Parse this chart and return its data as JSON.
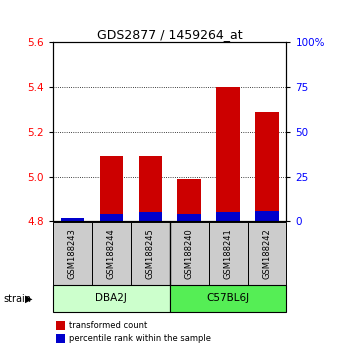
{
  "title": "GDS2877 / 1459264_at",
  "samples": [
    "GSM188243",
    "GSM188244",
    "GSM188245",
    "GSM188240",
    "GSM188241",
    "GSM188242"
  ],
  "transformed_counts": [
    4.81,
    5.09,
    5.09,
    4.99,
    5.4,
    5.29
  ],
  "percentile_ranks": [
    2,
    4,
    5,
    4,
    5,
    6
  ],
  "ylim_left": [
    4.8,
    5.6
  ],
  "ylim_right": [
    0,
    100
  ],
  "yticks_left": [
    4.8,
    5.0,
    5.2,
    5.4,
    5.6
  ],
  "yticks_right": [
    0,
    25,
    50,
    75,
    100
  ],
  "right_tick_labels": [
    "0",
    "25",
    "50",
    "75",
    "100%"
  ],
  "bar_base": 4.8,
  "red_color": "#cc0000",
  "blue_color": "#0000cc",
  "bar_width": 0.6,
  "sample_bg_color": "#cccccc",
  "group1_color": "#ccffcc",
  "group2_color": "#55ee55",
  "group_divider": 2.5
}
